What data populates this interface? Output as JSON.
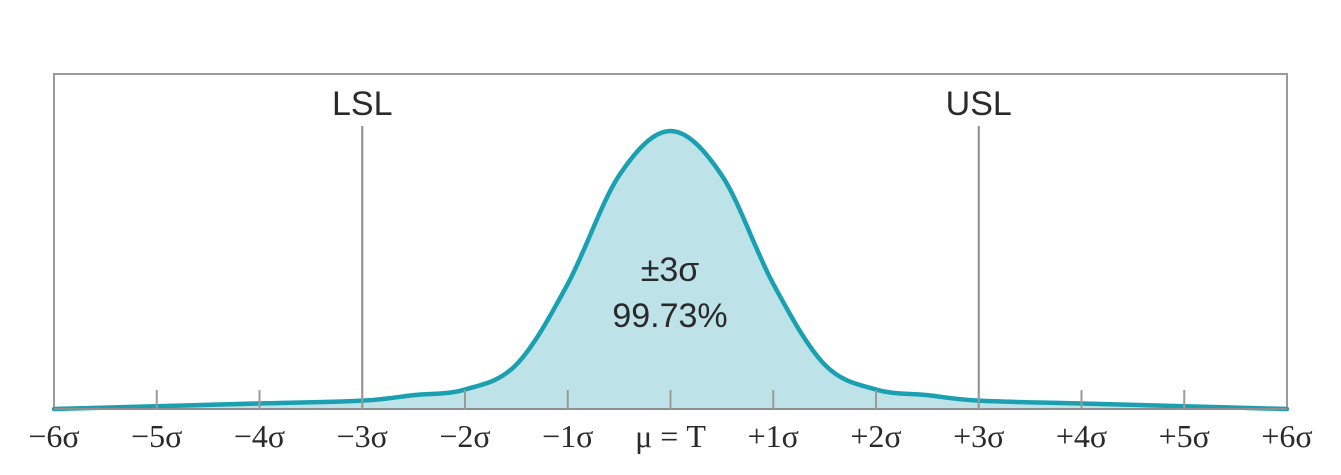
{
  "colors": {
    "curve_stroke": "#1aa0b0",
    "curve_fill": "#bde3e8",
    "frame": "#9b9b9b",
    "text": "#2a2a2a"
  },
  "chart_data": {
    "type": "area",
    "title": "",
    "xlabel": "",
    "ylabel": "",
    "xlim": [
      -6,
      6
    ],
    "ylim": [
      0,
      1
    ],
    "x_ticks": [
      -6,
      -5,
      -4,
      -3,
      -2,
      -1,
      0,
      1,
      2,
      3,
      4,
      5,
      6
    ],
    "tick_labels": [
      "−6σ",
      "−5σ",
      "−4σ",
      "−3σ",
      "−2σ",
      "−1σ",
      "μ = T",
      "+1σ",
      "+2σ",
      "+3σ",
      "+4σ",
      "+5σ",
      "+6σ"
    ],
    "spec_limits": [
      {
        "name": "LSL",
        "x": -3
      },
      {
        "name": "USL",
        "x": 3
      }
    ],
    "series": [
      {
        "x": [
          -6,
          -5,
          -4,
          -3,
          -2.5,
          -2,
          -1.5,
          -1,
          -0.5,
          0,
          0.5,
          1,
          1.5,
          2,
          2.5,
          3,
          4,
          5,
          6
        ],
        "values": [
          0.0,
          0.01,
          0.02,
          0.03,
          0.05,
          0.07,
          0.16,
          0.45,
          0.84,
          1.0,
          0.84,
          0.45,
          0.16,
          0.07,
          0.05,
          0.03,
          0.02,
          0.01,
          0.0
        ]
      }
    ],
    "annotation": {
      "line1": "±3σ",
      "line2": "99.73%"
    },
    "grid": false,
    "legend": "none"
  }
}
